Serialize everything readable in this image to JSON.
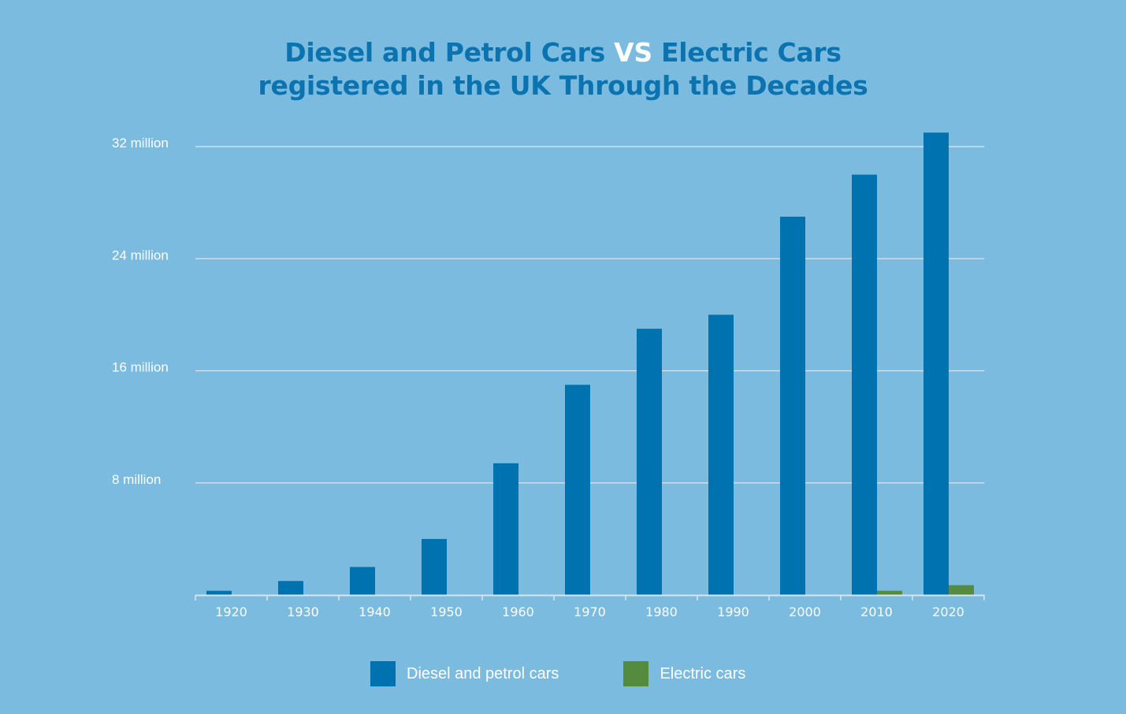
{
  "chart_data": {
    "type": "bar",
    "title": {
      "line1_part1": "Diesel and Petrol Cars ",
      "line1_vs": "VS",
      "line1_part2": " Electric Cars",
      "line2": "registered in the UK Through the Decades"
    },
    "xlabel": "",
    "ylabel": "",
    "categories": [
      "1920",
      "1930",
      "1940",
      "1950",
      "1960",
      "1970",
      "1980",
      "1990",
      "2000",
      "2010",
      "2020"
    ],
    "series": [
      {
        "name": "Diesel and petrol cars",
        "color": "#0072b0",
        "values": [
          0.3,
          1.0,
          2.0,
          4.0,
          9.4,
          15.0,
          19.0,
          20.0,
          27.0,
          30.0,
          33.0
        ]
      },
      {
        "name": "Electric cars",
        "color": "#548b3e",
        "values": [
          0,
          0,
          0,
          0,
          0,
          0,
          0,
          0,
          0,
          0.3,
          0.7
        ]
      }
    ],
    "units": "million",
    "ylim": [
      0,
      33
    ],
    "yticks": [
      {
        "value": 8,
        "label": "8 million"
      },
      {
        "value": 16,
        "label": "16 million"
      },
      {
        "value": 24,
        "label": "24 million"
      },
      {
        "value": 32,
        "label": "32 million"
      }
    ],
    "grid": true,
    "legend_position": "bottom"
  }
}
